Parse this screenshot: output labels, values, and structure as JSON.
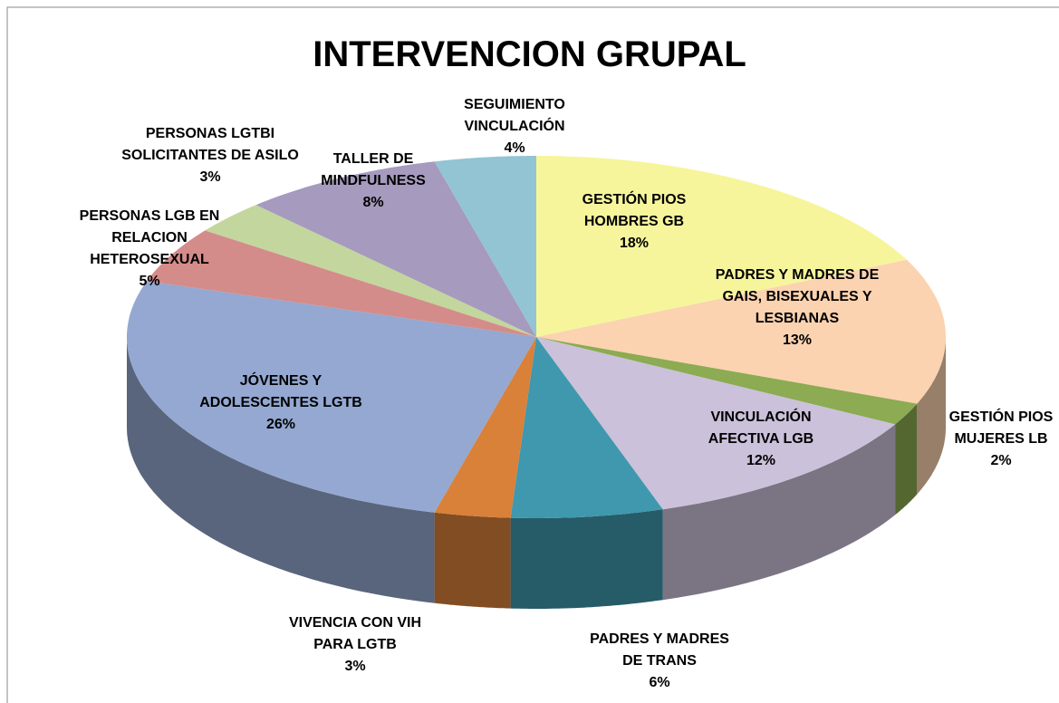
{
  "chart_data": {
    "type": "pie3d",
    "title": "INTERVENCION GRUPAL",
    "categories": [
      "GESTIÓN PIOS HOMBRES GB",
      "PADRES Y MADRES DE GAIS, BISEXUALES Y LESBIANAS",
      "GESTIÓN PIOS MUJERES LB",
      "VINCULACIÓN AFECTIVA LGB",
      "PADRES Y MADRES DE TRANS",
      "VIVENCIA CON VIH PARA LGTB",
      "JÓVENES Y ADOLESCENTES LGTB",
      "PERSONAS LGB EN RELACION HETEROSEXUAL",
      "PERSONAS LGTBI SOLICITANTES DE ASILO",
      "TALLER DE MINDFULNESS",
      "SEGUIMIENTO VINCULACIÓN"
    ],
    "values": [
      18,
      13,
      2,
      12,
      6,
      3,
      26,
      5,
      3,
      8,
      4
    ],
    "value_labels": [
      "18%",
      "13%",
      "2%",
      "12%",
      "6%",
      "3%",
      "26%",
      "5%",
      "3%",
      "8%",
      "4%"
    ],
    "colors": [
      "#f6f59c",
      "#fbd3b0",
      "#8cab52",
      "#cbc1da",
      "#3f98ae",
      "#d98039",
      "#94a8d1",
      "#d48c8a",
      "#c3d69d",
      "#a69abe",
      "#93c4d3"
    ]
  }
}
